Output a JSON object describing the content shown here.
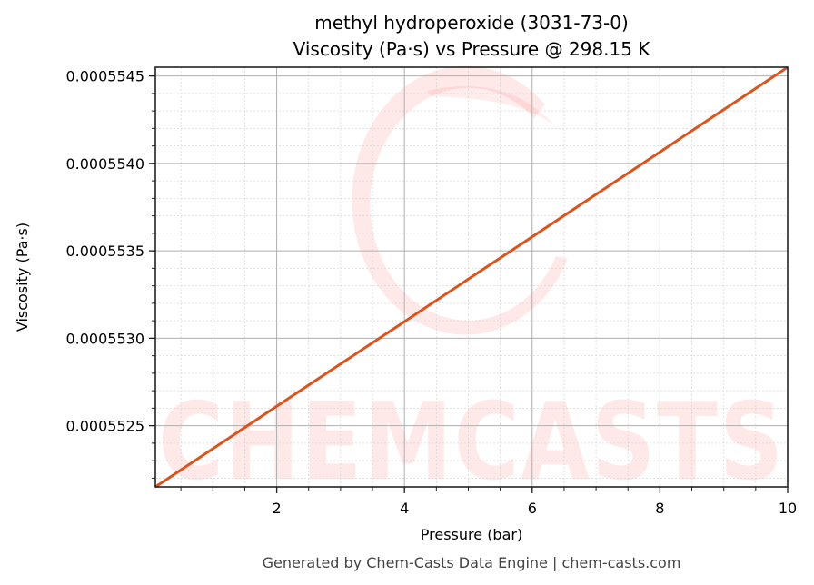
{
  "chart_data": {
    "type": "line",
    "title": "methyl hydroperoxide (3031-73-0)",
    "subtitle": "Viscosity (Pa·s) vs Pressure @ 298.15 K",
    "xlabel": "Pressure (bar)",
    "ylabel": "Viscosity (Pa·s)",
    "xlim": [
      0.1,
      10
    ],
    "ylim": [
      0.00055215,
      0.00055455
    ],
    "x_ticks": [
      2,
      4,
      6,
      8,
      10
    ],
    "x_tick_labels": [
      "2",
      "4",
      "6",
      "8",
      "10"
    ],
    "x_minor_step": 0.5,
    "y_ticks": [
      0.0005525,
      0.000553,
      0.0005535,
      0.000554,
      0.0005545
    ],
    "y_tick_labels": [
      "0.0005525",
      "0.0005530",
      "0.0005535",
      "0.0005540",
      "0.0005545"
    ],
    "y_minor_step": 1e-07,
    "grid": true,
    "legend": false,
    "series": [
      {
        "name": "Viscosity",
        "color": "#d9541e",
        "x": [
          0.1,
          1,
          2,
          3,
          4,
          5,
          6,
          7,
          8,
          9,
          10
        ],
        "values": [
          0.00055215,
          0.000552368,
          0.000552611,
          0.000552853,
          0.000553095,
          0.000553338,
          0.00055358,
          0.000553823,
          0.000554065,
          0.000554308,
          0.00055455
        ]
      }
    ]
  },
  "watermark": {
    "text": "CHEMCASTS",
    "color": "#ff0000"
  },
  "footer": "Generated by Chem-Casts Data Engine | chem-casts.com",
  "colors": {
    "line": "#d9541e",
    "major_grid": "#b0b0b0",
    "minor_grid": "#d8d8d8",
    "axis": "#222222"
  }
}
